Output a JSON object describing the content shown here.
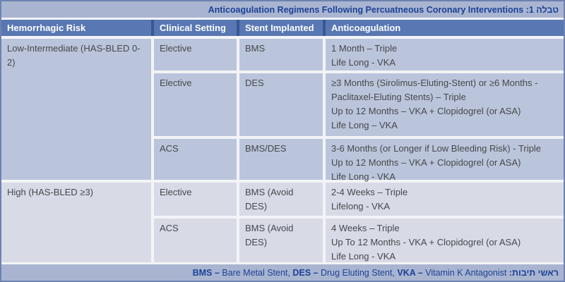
{
  "title": "Anticoagulation Regimens Following Percuatneous Coronary Interventions :1 טבלה",
  "columns": [
    "Hemorrhagic Risk",
    "Clinical Setting",
    "Stent Implanted",
    "Anticoagulation"
  ],
  "groups": [
    {
      "risk": "Low-Intermediate (HAS-BLED 0-2)",
      "rows": [
        {
          "clinical_setting": "Elective",
          "stent": "BMS",
          "anticoagulation": [
            "1 Month – Triple",
            "Life Long - VKA"
          ]
        },
        {
          "clinical_setting": "Elective",
          "stent": "DES",
          "anticoagulation": [
            "≥3 Months (Sirolimus-Eluting-Stent) or ≥6 Months - Paclitaxel-Eluting Stents) – Triple",
            "Up to 12 Months – VKA + Clopidogrel (or ASA)",
            "Life Long – VKA"
          ]
        },
        {
          "clinical_setting": "ACS",
          "stent": "BMS/DES",
          "anticoagulation": [
            "3-6 Months (or Longer if Low Bleeding Risk) - Triple",
            "Up to 12 Months – VKA + Clopidogrel (or ASA)",
            "Life Long - VKA"
          ]
        }
      ]
    },
    {
      "risk": "High (HAS-BLED ≥3)",
      "rows": [
        {
          "clinical_setting": "Elective",
          "stent": "BMS (Avoid DES)",
          "anticoagulation": [
            "2-4 Weeks – Triple",
            "Lifelong - VKA"
          ]
        },
        {
          "clinical_setting": "ACS",
          "stent": "BMS (Avoid DES)",
          "anticoagulation": [
            "4 Weeks – Triple",
            "Up To 12 Months - VKA + Clopidogrel (or ASA)",
            "Life Long - VKA"
          ]
        }
      ]
    }
  ],
  "footer": {
    "segments": [
      {
        "text": "BMS – ",
        "bold": true
      },
      {
        "text": "Bare Metal Stent, ",
        "bold": false
      },
      {
        "text": "DES – ",
        "bold": true
      },
      {
        "text": "Drug Eluting Stent, ",
        "bold": false
      },
      {
        "text": "VKA – ",
        "bold": true
      },
      {
        "text": "Vitamin K Antagonist",
        "bold": false
      },
      {
        "text": " :ראשי תיבות",
        "bold": true
      }
    ]
  },
  "colors": {
    "title_band_bg": "#a9b5d0",
    "title_text": "#1c4196",
    "header_bg": "#5877b3",
    "header_text": "#ffffff",
    "group1_cell_bg": "#bac5db",
    "group2_cell_bg": "#d8dbe6",
    "body_text": "#47474b",
    "outer_border": "#6d82b0",
    "header_divider": "#3a5694"
  }
}
